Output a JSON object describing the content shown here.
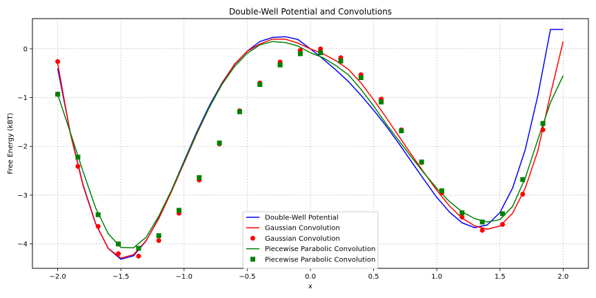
{
  "chart_data": {
    "type": "line",
    "title": "Double-Well Potential and Convolutions",
    "xlabel": "x",
    "ylabel": "Free Energy (kBT)",
    "xlim": [
      -2.2,
      2.2
    ],
    "ylim": [
      -4.5,
      0.62
    ],
    "xticks": [
      -2.0,
      -1.5,
      -1.0,
      -0.5,
      0.0,
      0.5,
      1.0,
      1.5,
      2.0
    ],
    "xtick_labels": [
      "−2.0",
      "−1.5",
      "−1.0",
      "−0.5",
      "0.0",
      "0.5",
      "1.0",
      "1.5",
      "2.0"
    ],
    "yticks": [
      0,
      -1,
      -2,
      -3,
      -4
    ],
    "ytick_labels": [
      "0",
      "−1",
      "−2",
      "−3",
      "−4"
    ],
    "grid": true,
    "legend_position": "bottom-center",
    "series": [
      {
        "name": "Double-Well Potential",
        "kind": "line",
        "color": "#0000ff",
        "x": [
          -2.0,
          -1.9,
          -1.8,
          -1.7,
          -1.6,
          -1.5,
          -1.4,
          -1.3,
          -1.2,
          -1.1,
          -1.0,
          -0.9,
          -0.8,
          -0.7,
          -0.6,
          -0.5,
          -0.4,
          -0.3,
          -0.2,
          -0.1,
          0.0,
          0.1,
          0.2,
          0.3,
          0.4,
          0.5,
          0.6,
          0.7,
          0.8,
          0.9,
          1.0,
          1.1,
          1.2,
          1.3,
          1.4,
          1.5,
          1.6,
          1.7,
          1.8,
          1.9,
          2.0
        ],
        "y": [
          -0.4,
          -1.722,
          -2.782,
          -3.578,
          -4.093,
          -4.313,
          -4.244,
          -3.936,
          -3.47,
          -2.904,
          -2.3,
          -1.708,
          -1.166,
          -0.698,
          -0.318,
          -0.047,
          0.15,
          0.234,
          0.25,
          0.194,
          0.0,
          -0.206,
          -0.43,
          -0.668,
          -0.951,
          -1.255,
          -1.583,
          -1.939,
          -2.314,
          -2.686,
          -3.046,
          -3.345,
          -3.566,
          -3.665,
          -3.609,
          -3.354,
          -2.853,
          -2.069,
          -0.958,
          0.4,
          0.4
        ]
      },
      {
        "name": "Gaussian Convolution",
        "kind": "line",
        "color": "#ff0000",
        "x": [
          -2.0,
          -1.9,
          -1.8,
          -1.7,
          -1.6,
          -1.5,
          -1.4,
          -1.3,
          -1.2,
          -1.1,
          -1.0,
          -0.9,
          -0.8,
          -0.7,
          -0.6,
          -0.5,
          -0.4,
          -0.3,
          -0.2,
          -0.1,
          0.0,
          0.1,
          0.2,
          0.3,
          0.4,
          0.5,
          0.6,
          0.7,
          0.8,
          0.9,
          1.0,
          1.1,
          1.2,
          1.3,
          1.4,
          1.5,
          1.6,
          1.7,
          1.8,
          1.9,
          2.0
        ],
        "y": [
          -0.3,
          -1.74,
          -2.8,
          -3.59,
          -4.09,
          -4.29,
          -4.22,
          -3.93,
          -3.48,
          -2.93,
          -2.34,
          -1.75,
          -1.2,
          -0.71,
          -0.31,
          -0.05,
          0.1,
          0.2,
          0.2,
          0.12,
          0.0,
          -0.1,
          -0.24,
          -0.42,
          -0.7,
          -1.04,
          -1.41,
          -1.79,
          -2.17,
          -2.54,
          -2.9,
          -3.22,
          -3.47,
          -3.63,
          -3.7,
          -3.63,
          -3.37,
          -2.86,
          -2.09,
          -0.93,
          0.15
        ]
      },
      {
        "name": "Gaussian Convolution",
        "kind": "scatter",
        "marker": "circle",
        "color": "#ff0000",
        "x": [
          -2.0,
          -1.84,
          -1.68,
          -1.52,
          -1.36,
          -1.2,
          -1.04,
          -0.88,
          -0.72,
          -0.56,
          -0.4,
          -0.24,
          -0.08,
          0.08,
          0.24,
          0.4,
          0.56,
          0.72,
          0.88,
          1.04,
          1.2,
          1.36,
          1.52,
          1.68,
          1.84
        ],
        "y": [
          -0.26,
          -2.41,
          -3.64,
          -4.2,
          -4.25,
          -3.93,
          -3.37,
          -2.69,
          -1.95,
          -1.27,
          -0.7,
          -0.27,
          -0.03,
          0.0,
          -0.18,
          -0.53,
          -1.03,
          -1.66,
          -2.33,
          -2.95,
          -3.45,
          -3.72,
          -3.6,
          -2.98,
          -1.66
        ]
      },
      {
        "name": "Piecewise Parabolic Convolution",
        "kind": "line",
        "color": "#008000",
        "x": [
          -2.0,
          -1.9,
          -1.8,
          -1.7,
          -1.6,
          -1.5,
          -1.4,
          -1.3,
          -1.2,
          -1.1,
          -1.0,
          -0.9,
          -0.8,
          -0.7,
          -0.6,
          -0.5,
          -0.4,
          -0.3,
          -0.2,
          -0.1,
          0.0,
          0.1,
          0.2,
          0.3,
          0.4,
          0.5,
          0.6,
          0.7,
          0.8,
          0.9,
          1.0,
          1.1,
          1.2,
          1.3,
          1.4,
          1.5,
          1.6,
          1.7,
          1.8,
          1.9,
          2.0
        ],
        "y": [
          -0.93,
          -1.72,
          -2.51,
          -3.26,
          -3.79,
          -4.07,
          -4.08,
          -3.86,
          -3.43,
          -2.9,
          -2.32,
          -1.73,
          -1.2,
          -0.73,
          -0.36,
          -0.09,
          0.08,
          0.15,
          0.13,
          0.06,
          -0.08,
          -0.18,
          -0.34,
          -0.53,
          -0.83,
          -1.17,
          -1.54,
          -1.88,
          -2.22,
          -2.55,
          -2.86,
          -3.13,
          -3.34,
          -3.48,
          -3.55,
          -3.5,
          -3.23,
          -2.65,
          -1.86,
          -1.1,
          -0.55
        ]
      },
      {
        "name": "Piecewise Parabolic Convolution",
        "kind": "scatter",
        "marker": "square",
        "color": "#008000",
        "x": [
          -2.0,
          -1.84,
          -1.68,
          -1.52,
          -1.36,
          -1.2,
          -1.04,
          -0.88,
          -0.72,
          -0.56,
          -0.4,
          -0.24,
          -0.08,
          0.08,
          0.24,
          0.4,
          0.56,
          0.72,
          0.88,
          1.04,
          1.2,
          1.36,
          1.52,
          1.68,
          1.84
        ],
        "y": [
          -0.93,
          -2.22,
          -3.4,
          -4.0,
          -4.09,
          -3.83,
          -3.31,
          -2.64,
          -1.93,
          -1.29,
          -0.73,
          -0.33,
          -0.1,
          -0.08,
          -0.25,
          -0.59,
          -1.09,
          -1.68,
          -2.32,
          -2.91,
          -3.36,
          -3.55,
          -3.38,
          -2.68,
          -1.53
        ]
      }
    ]
  }
}
